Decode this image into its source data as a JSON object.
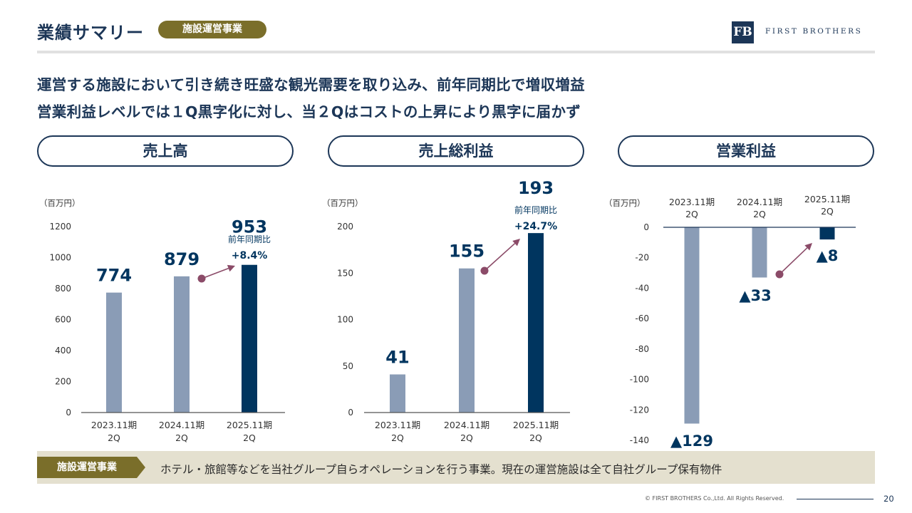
{
  "header": {
    "title": "業績サマリー",
    "badge": "施設運営事業",
    "logo_mark": "FB",
    "logo_text": "FIRST BROTHERS"
  },
  "headline": {
    "line1": "運営する施設において引き続き旺盛な観光需要を取り込み、前年同期比で増収増益",
    "line2": "営業利益レベルでは１Q黒字化に対し、当２Qはコストの上昇により黒字に届かず"
  },
  "colors": {
    "navy": "#00355f",
    "gray_blue": "#8a9cb6",
    "arrow": "#8b4b68",
    "olive": "#7a6e2a",
    "band": "#e4e0cf"
  },
  "chart_data": [
    {
      "id": "sales",
      "type": "bar",
      "title": "売上高",
      "unit": "（百万円）",
      "categories": [
        "2023.11期\n2Q",
        "2024.11期\n2Q",
        "2025.11期\n2Q"
      ],
      "values": [
        774,
        879,
        953
      ],
      "value_labels": [
        "774",
        "879",
        "953"
      ],
      "ylim": [
        0,
        1200
      ],
      "yticks": [
        0,
        200,
        400,
        600,
        800,
        1000,
        1200
      ],
      "change": {
        "label": "前年同期比",
        "value": "+8.4%"
      },
      "x_axis": "bottom"
    },
    {
      "id": "gross",
      "type": "bar",
      "title": "売上総利益",
      "unit": "（百万円）",
      "categories": [
        "2023.11期\n2Q",
        "2024.11期\n2Q",
        "2025.11期\n2Q"
      ],
      "values": [
        41,
        155,
        193
      ],
      "value_labels": [
        "41",
        "155",
        "193"
      ],
      "ylim": [
        0,
        200
      ],
      "yticks": [
        0,
        50,
        100,
        150,
        200
      ],
      "change": {
        "label": "前年同期比",
        "value": "+24.7%"
      },
      "x_axis": "bottom"
    },
    {
      "id": "op",
      "type": "bar",
      "title": "営業利益",
      "unit": "（百万円）",
      "categories": [
        "2023.11期\n2Q",
        "2024.11期\n2Q",
        "2025.11期\n2Q"
      ],
      "values": [
        -129,
        -33,
        -8
      ],
      "value_labels": [
        "▲129",
        "▲33",
        "▲8"
      ],
      "ylim": [
        -140,
        0
      ],
      "yticks": [
        0,
        -20,
        -40,
        -60,
        -80,
        -100,
        -120,
        -140
      ],
      "x_axis": "top"
    }
  ],
  "footer": {
    "tag": "施設運営事業",
    "description": "ホテル・旅館等などを当社グループ自らオペレーションを行う事業。現在の運営施設は全て自社グループ保有物件",
    "copyright": "© FIRST BROTHERS Co.,Ltd. All Rights Reserved.",
    "page": "20"
  }
}
